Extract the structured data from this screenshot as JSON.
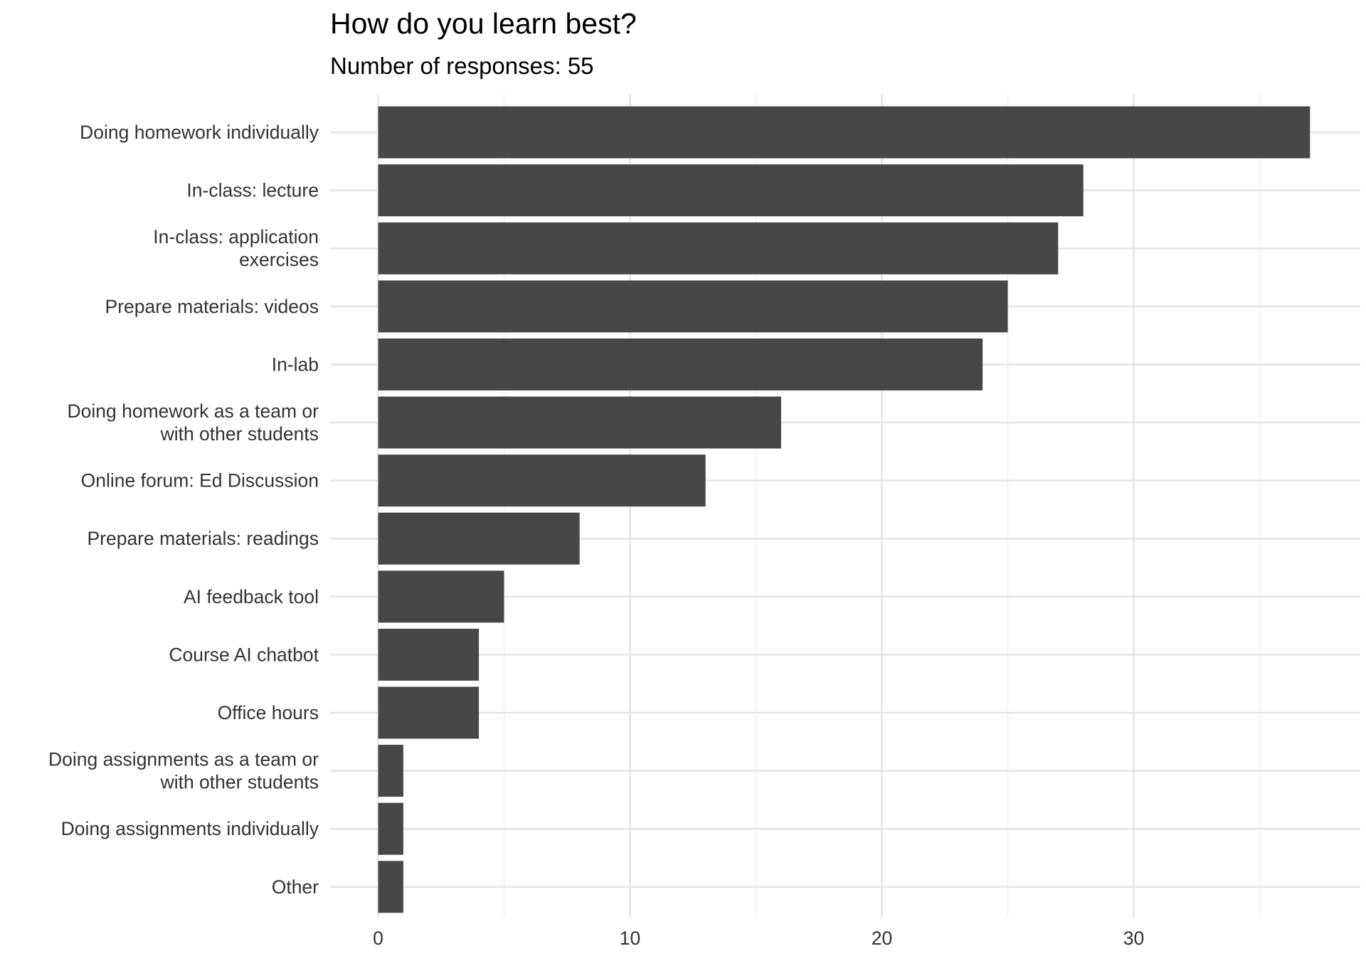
{
  "chart_data": {
    "type": "bar",
    "orientation": "horizontal",
    "title": "How do you learn best?",
    "subtitle": "Number of responses: 55",
    "xlabel": "",
    "ylabel": "",
    "categories": [
      "Doing homework individually",
      "In-class: lecture",
      "In-class: application exercises",
      "Prepare materials: videos",
      "In-lab",
      "Doing homework as a team or with other students",
      "Online forum: Ed Discussion",
      "Prepare materials: readings",
      "AI feedback tool",
      "Course AI chatbot",
      "Office hours",
      "Doing assignments as a team or with other students",
      "Doing assignments individually",
      "Other"
    ],
    "category_label_lines": [
      [
        "Doing homework individually"
      ],
      [
        "In-class: lecture"
      ],
      [
        "In-class: application",
        "exercises"
      ],
      [
        "Prepare materials: videos"
      ],
      [
        "In-lab"
      ],
      [
        "Doing homework as a team or",
        "with other students"
      ],
      [
        "Online forum: Ed Discussion"
      ],
      [
        "Prepare materials: readings"
      ],
      [
        "AI feedback tool"
      ],
      [
        "Course AI chatbot"
      ],
      [
        "Office hours"
      ],
      [
        "Doing assignments as a team or",
        "with other students"
      ],
      [
        "Doing assignments individually"
      ],
      [
        "Other"
      ]
    ],
    "values": [
      37,
      28,
      27,
      25,
      24,
      16,
      13,
      8,
      5,
      4,
      4,
      1,
      1,
      1
    ],
    "xlim": [
      -1.9,
      38.85
    ],
    "xticks": [
      0,
      10,
      20,
      30
    ],
    "xtick_labels": [
      "0",
      "10",
      "20",
      "30"
    ],
    "grid": true,
    "legend": "none",
    "colors": {
      "bar": "#474747",
      "grid_major": "#e5e5e5",
      "grid_minor": "#f0f0f0",
      "text": "#333333",
      "title": "#000000"
    }
  }
}
